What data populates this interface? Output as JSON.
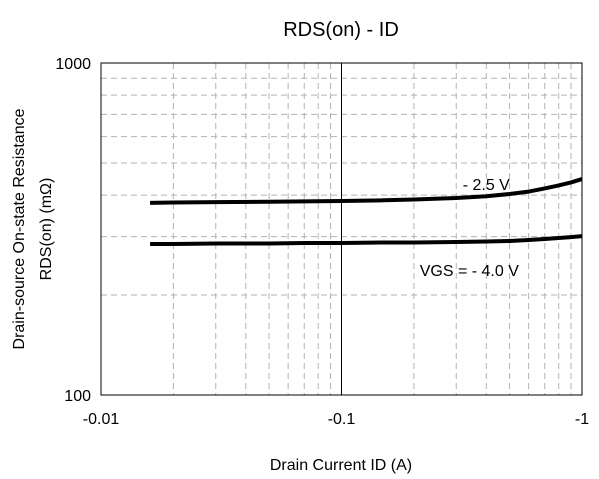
{
  "chart_data": {
    "type": "line",
    "title": "RDS(on) - ID",
    "xlabel": "Drain Current ID (A)",
    "ylabel_line1": "Drain-source On-state Resistance",
    "ylabel_line2": "RDS(on) (mΩ)",
    "xscale": "log",
    "yscale": "log",
    "xlim": [
      -0.01,
      -1
    ],
    "ylim": [
      100,
      1000
    ],
    "grid": true,
    "x_ticks": [
      {
        "value": -0.01,
        "label": "-0.01"
      },
      {
        "value": -0.1,
        "label": "-0.1"
      },
      {
        "value": -1,
        "label": "-1"
      }
    ],
    "y_ticks": [
      {
        "value": 100,
        "label": "100"
      },
      {
        "value": 1000,
        "label": "1000"
      }
    ],
    "series": [
      {
        "name": "- 2.5 V",
        "x": [
          -0.016,
          -0.02,
          -0.03,
          -0.05,
          -0.07,
          -0.1,
          -0.15,
          -0.2,
          -0.3,
          -0.4,
          -0.5,
          -0.6,
          -0.7,
          -0.8,
          -0.9,
          -1.0
        ],
        "y": [
          379,
          380,
          381,
          382,
          383,
          384,
          386,
          388,
          392,
          397,
          403,
          410,
          419,
          428,
          437,
          447
        ]
      },
      {
        "name": "VGS = - 4.0 V",
        "x": [
          -0.016,
          -0.02,
          -0.03,
          -0.05,
          -0.07,
          -0.1,
          -0.15,
          -0.2,
          -0.3,
          -0.4,
          -0.5,
          -0.6,
          -0.7,
          -0.8,
          -0.9,
          -1.0
        ],
        "y": [
          285,
          285,
          286,
          286,
          287,
          287,
          288,
          288,
          289,
          290,
          291,
          293,
          295,
          297,
          299,
          301
        ]
      }
    ],
    "annotations": [
      {
        "text": "- 2.5 V",
        "x": -0.4,
        "y": 415
      },
      {
        "text": "VGS = - 4.0 V",
        "x": -0.34,
        "y": 228
      }
    ],
    "line_color": "#000000"
  }
}
